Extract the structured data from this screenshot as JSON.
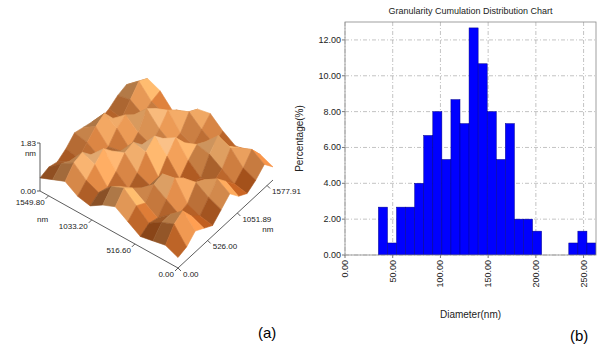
{
  "chart_data": [
    {
      "type": "surface",
      "panel_label": "(a)",
      "x_label": "nm",
      "y_label": "nm",
      "z_label": "nm",
      "xlim": [
        0,
        1653
      ],
      "xticks": [
        {
          "value": 0,
          "label": "0.00"
        },
        {
          "value": 516.6,
          "label": "516.60"
        },
        {
          "value": 1033.2,
          "label": "1033.20"
        },
        {
          "value": 1549.8,
          "label": "1549.80"
        }
      ],
      "ylim": [
        0,
        1683
      ],
      "yticks": [
        {
          "value": 0,
          "label": "0.00"
        },
        {
          "value": 526,
          "label": "526.00"
        },
        {
          "value": 1051.89,
          "label": "1051.89"
        },
        {
          "value": 1577.91,
          "label": "1577.91"
        }
      ],
      "zlim": [
        0,
        1.83
      ],
      "zticks": [
        {
          "value": 0,
          "label": "0.00"
        },
        {
          "value": 1.83,
          "label": "1.83"
        }
      ],
      "heights": [
        [
          0.4,
          0.5,
          0.8,
          0.6,
          0.4,
          0.7,
          1.0,
          0.6,
          0.4,
          0.6,
          0.9,
          0.5
        ],
        [
          0.6,
          1.1,
          1.3,
          0.8,
          0.5,
          0.9,
          1.3,
          0.9,
          0.5,
          0.8,
          1.2,
          0.7
        ],
        [
          0.5,
          0.9,
          0.9,
          0.6,
          0.7,
          1.2,
          1.0,
          0.6,
          0.8,
          1.3,
          1.0,
          0.6
        ],
        [
          0.4,
          0.6,
          0.5,
          0.9,
          1.4,
          1.1,
          0.6,
          0.5,
          1.1,
          1.5,
          0.8,
          0.5
        ],
        [
          0.7,
          1.0,
          0.8,
          1.2,
          1.3,
          0.7,
          0.5,
          0.9,
          1.2,
          1.0,
          0.6,
          0.8
        ],
        [
          1.0,
          1.4,
          1.1,
          0.8,
          0.6,
          0.6,
          1.1,
          1.5,
          1.0,
          0.6,
          0.9,
          1.2
        ],
        [
          0.8,
          1.2,
          0.9,
          0.5,
          0.8,
          1.3,
          1.6,
          1.2,
          0.7,
          0.8,
          1.3,
          1.1
        ],
        [
          0.5,
          0.7,
          0.6,
          0.9,
          1.3,
          1.4,
          1.0,
          0.7,
          1.0,
          1.4,
          1.1,
          0.7
        ],
        [
          0.6,
          0.9,
          1.2,
          1.5,
          1.1,
          0.8,
          0.6,
          0.9,
          1.5,
          1.2,
          0.7,
          0.5
        ],
        [
          0.9,
          1.3,
          1.4,
          1.0,
          0.6,
          0.7,
          1.1,
          1.3,
          1.0,
          0.7,
          0.9,
          1.0
        ],
        [
          0.7,
          1.0,
          0.8,
          0.6,
          0.9,
          1.2,
          1.4,
          0.9,
          0.6,
          1.0,
          1.4,
          1.2
        ],
        [
          0.5,
          0.6,
          0.5,
          0.7,
          1.0,
          0.9,
          0.8,
          0.6,
          0.7,
          0.9,
          1.0,
          0.8
        ]
      ]
    },
    {
      "type": "histogram",
      "panel_label": "(b)",
      "title": "Granularity Cumulation Distribution Chart",
      "x_label": "Diameter(nm)",
      "y_label": "Percentage(%)",
      "bins": [
        35,
        44.5,
        54,
        63.5,
        73,
        82.5,
        92,
        101.5,
        111,
        120.5,
        130,
        139.5,
        149,
        158.5,
        168,
        177.5,
        187,
        196.5,
        206,
        215.5,
        225,
        234.5,
        244,
        253.5,
        263
      ],
      "values": [
        2.67,
        0.67,
        2.67,
        2.67,
        4.0,
        6.67,
        8.0,
        5.33,
        8.67,
        7.33,
        12.67,
        10.67,
        8.0,
        5.33,
        7.33,
        2.0,
        2.0,
        1.33,
        0,
        0,
        0,
        0.67,
        1.33,
        0.67
      ],
      "color": "#0000ff",
      "xlim": [
        0,
        263
      ],
      "xticks": [
        {
          "value": 0,
          "label": "0.00"
        },
        {
          "value": 50,
          "label": "50.00"
        },
        {
          "value": 100,
          "label": "100.00"
        },
        {
          "value": 150,
          "label": "150.00"
        },
        {
          "value": 200,
          "label": "200.00"
        },
        {
          "value": 250,
          "label": "250.00"
        }
      ],
      "ylim": [
        0,
        13
      ],
      "yticks": [
        {
          "value": 0,
          "label": "0.00"
        },
        {
          "value": 2,
          "label": "2.00"
        },
        {
          "value": 4,
          "label": "4.00"
        },
        {
          "value": 6,
          "label": "6.00"
        },
        {
          "value": 8,
          "label": "8.00"
        },
        {
          "value": 10,
          "label": "10.00"
        },
        {
          "value": 12,
          "label": "12.00"
        }
      ],
      "grid": true
    }
  ]
}
